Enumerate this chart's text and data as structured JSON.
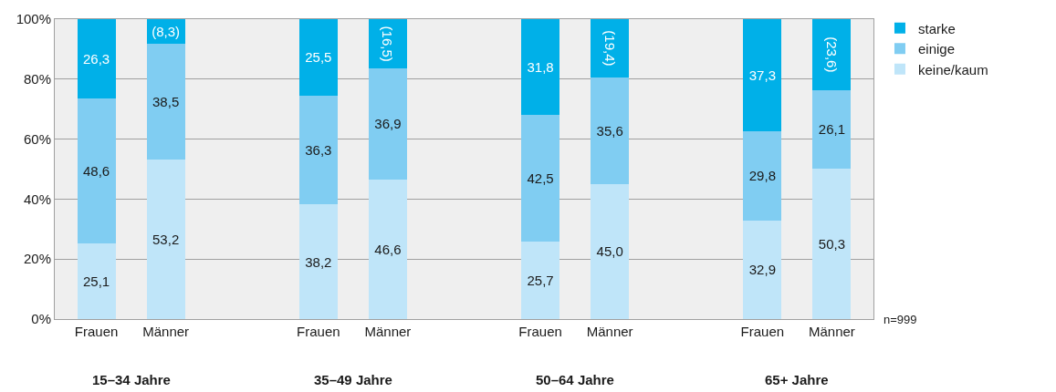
{
  "chart_data": {
    "type": "bar",
    "stacked": true,
    "categories": [
      "Frauen",
      "Männer",
      "Frauen",
      "Männer",
      "Frauen",
      "Männer",
      "Frauen",
      "Männer"
    ],
    "series": [
      {
        "name": "keine/kaum",
        "color": "#bfe5f9",
        "values": [
          25.1,
          53.2,
          38.2,
          46.6,
          25.7,
          45.0,
          32.9,
          50.3
        ],
        "value_labels": [
          "25,1",
          "53,2",
          "38,2",
          "46,6",
          "25,7",
          "45,0",
          "32,9",
          "50,3"
        ]
      },
      {
        "name": "einige",
        "color": "#80cdf2",
        "values": [
          48.6,
          38.5,
          36.3,
          36.9,
          42.5,
          35.6,
          29.8,
          26.1
        ],
        "value_labels": [
          "48,6",
          "38,5",
          "36,3",
          "36,9",
          "42,5",
          "35,6",
          "29,8",
          "26,1"
        ]
      },
      {
        "name": "starke",
        "color": "#00b0e8",
        "values": [
          26.3,
          8.3,
          25.5,
          16.5,
          31.8,
          19.4,
          37.3,
          23.6
        ],
        "value_labels": [
          "26,3",
          "(8,3)",
          "25,5",
          "(16,5)",
          "31,8",
          "(19,4)",
          "37,3",
          "(23,6)"
        ]
      }
    ],
    "ylim": [
      0,
      100
    ],
    "yticks": [
      {
        "value": 0,
        "label": "0%"
      },
      {
        "value": 20,
        "label": "20%"
      },
      {
        "value": 40,
        "label": "40%"
      },
      {
        "value": 60,
        "label": "60%"
      },
      {
        "value": 80,
        "label": "80%"
      },
      {
        "value": 100,
        "label": "100%"
      }
    ],
    "grid": "y",
    "legend": "top right",
    "annotations": [
      "15–34 Jahre",
      "35–49 Jahre",
      "50–64 Jahre",
      "65+ Jahre",
      "n=999"
    ]
  }
}
